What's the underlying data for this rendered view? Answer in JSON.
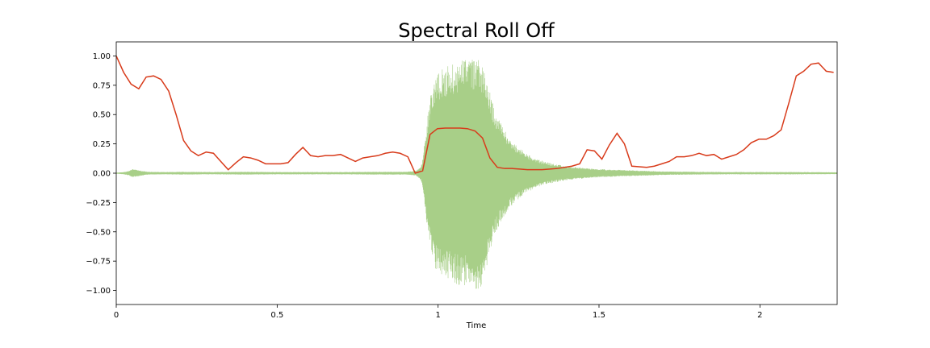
{
  "chart_data": {
    "type": "line",
    "title": "Spectral Roll Off",
    "xlabel": "Time",
    "ylabel": "",
    "xlim": [
      0,
      2.24
    ],
    "ylim": [
      -1.12,
      1.12
    ],
    "x_ticks": [
      {
        "value": 0,
        "label": "0"
      },
      {
        "value": 0.5,
        "label": "0.5"
      },
      {
        "value": 1,
        "label": "1"
      },
      {
        "value": 1.5,
        "label": "1.5"
      },
      {
        "value": 2,
        "label": "2"
      }
    ],
    "y_ticks": [
      {
        "value": 1.0,
        "label": "1.00"
      },
      {
        "value": 0.75,
        "label": "0.75"
      },
      {
        "value": 0.5,
        "label": "0.50"
      },
      {
        "value": 0.25,
        "label": "0.25"
      },
      {
        "value": 0.0,
        "label": "0.00"
      },
      {
        "value": -0.25,
        "label": "−0.25"
      },
      {
        "value": -0.5,
        "label": "−0.50"
      },
      {
        "value": -0.75,
        "label": "−0.75"
      },
      {
        "value": -1.0,
        "label": "−1.00"
      }
    ],
    "grid": false,
    "colors": {
      "waveform": "#7ab648",
      "rolloff": "#d83b1b"
    },
    "series": [
      {
        "kind": "waveform-envelope",
        "points": [
          [
            0.0,
            0.005
          ],
          [
            0.02,
            0.008
          ],
          [
            0.04,
            0.02
          ],
          [
            0.05,
            0.035
          ],
          [
            0.06,
            0.03
          ],
          [
            0.08,
            0.02
          ],
          [
            0.1,
            0.012
          ],
          [
            0.15,
            0.01
          ],
          [
            0.2,
            0.012
          ],
          [
            0.3,
            0.01
          ],
          [
            0.4,
            0.012
          ],
          [
            0.5,
            0.01
          ],
          [
            0.6,
            0.01
          ],
          [
            0.7,
            0.01
          ],
          [
            0.8,
            0.012
          ],
          [
            0.9,
            0.012
          ],
          [
            0.93,
            0.02
          ],
          [
            0.94,
            0.04
          ],
          [
            0.95,
            0.08
          ],
          [
            0.96,
            0.3
          ],
          [
            0.97,
            0.55
          ],
          [
            0.98,
            0.72
          ],
          [
            0.99,
            0.82
          ],
          [
            1.0,
            0.86
          ],
          [
            1.02,
            0.9
          ],
          [
            1.04,
            0.93
          ],
          [
            1.06,
            0.95
          ],
          [
            1.08,
            0.97
          ],
          [
            1.1,
            0.98
          ],
          [
            1.12,
            0.99
          ],
          [
            1.13,
            1.0
          ],
          [
            1.14,
            0.9
          ],
          [
            1.15,
            0.82
          ],
          [
            1.16,
            0.72
          ],
          [
            1.17,
            0.6
          ],
          [
            1.18,
            0.5
          ],
          [
            1.2,
            0.4
          ],
          [
            1.22,
            0.3
          ],
          [
            1.25,
            0.22
          ],
          [
            1.28,
            0.16
          ],
          [
            1.3,
            0.13
          ],
          [
            1.33,
            0.1
          ],
          [
            1.36,
            0.08
          ],
          [
            1.4,
            0.06
          ],
          [
            1.45,
            0.045
          ],
          [
            1.5,
            0.035
          ],
          [
            1.55,
            0.03
          ],
          [
            1.6,
            0.025
          ],
          [
            1.7,
            0.015
          ],
          [
            1.8,
            0.012
          ],
          [
            1.9,
            0.01
          ],
          [
            2.0,
            0.01
          ],
          [
            2.1,
            0.01
          ],
          [
            2.24,
            0.008
          ]
        ]
      },
      {
        "kind": "rolloff-line",
        "points": [
          [
            0.0,
            1.0
          ],
          [
            0.023,
            0.86
          ],
          [
            0.046,
            0.76
          ],
          [
            0.07,
            0.72
          ],
          [
            0.093,
            0.82
          ],
          [
            0.116,
            0.83
          ],
          [
            0.139,
            0.8
          ],
          [
            0.163,
            0.7
          ],
          [
            0.186,
            0.5
          ],
          [
            0.209,
            0.28
          ],
          [
            0.232,
            0.19
          ],
          [
            0.255,
            0.15
          ],
          [
            0.279,
            0.18
          ],
          [
            0.302,
            0.17
          ],
          [
            0.325,
            0.1
          ],
          [
            0.348,
            0.03
          ],
          [
            0.372,
            0.09
          ],
          [
            0.395,
            0.14
          ],
          [
            0.418,
            0.13
          ],
          [
            0.441,
            0.11
          ],
          [
            0.464,
            0.08
          ],
          [
            0.488,
            0.08
          ],
          [
            0.511,
            0.08
          ],
          [
            0.534,
            0.09
          ],
          [
            0.557,
            0.16
          ],
          [
            0.58,
            0.22
          ],
          [
            0.604,
            0.15
          ],
          [
            0.627,
            0.14
          ],
          [
            0.65,
            0.15
          ],
          [
            0.673,
            0.15
          ],
          [
            0.697,
            0.16
          ],
          [
            0.72,
            0.13
          ],
          [
            0.743,
            0.1
          ],
          [
            0.766,
            0.13
          ],
          [
            0.789,
            0.14
          ],
          [
            0.813,
            0.15
          ],
          [
            0.836,
            0.17
          ],
          [
            0.859,
            0.18
          ],
          [
            0.882,
            0.17
          ],
          [
            0.906,
            0.14
          ],
          [
            0.929,
            0.0
          ],
          [
            0.952,
            0.02
          ],
          [
            0.975,
            0.33
          ],
          [
            0.998,
            0.38
          ],
          [
            1.022,
            0.385
          ],
          [
            1.045,
            0.385
          ],
          [
            1.068,
            0.385
          ],
          [
            1.091,
            0.38
          ],
          [
            1.115,
            0.36
          ],
          [
            1.138,
            0.3
          ],
          [
            1.161,
            0.13
          ],
          [
            1.184,
            0.05
          ],
          [
            1.207,
            0.04
          ],
          [
            1.231,
            0.04
          ],
          [
            1.254,
            0.035
          ],
          [
            1.277,
            0.03
          ],
          [
            1.3,
            0.03
          ],
          [
            1.323,
            0.03
          ],
          [
            1.347,
            0.035
          ],
          [
            1.37,
            0.04
          ],
          [
            1.393,
            0.05
          ],
          [
            1.416,
            0.06
          ],
          [
            1.44,
            0.08
          ],
          [
            1.463,
            0.2
          ],
          [
            1.486,
            0.19
          ],
          [
            1.509,
            0.12
          ],
          [
            1.532,
            0.24
          ],
          [
            1.556,
            0.34
          ],
          [
            1.579,
            0.25
          ],
          [
            1.602,
            0.06
          ],
          [
            1.625,
            0.055
          ],
          [
            1.648,
            0.05
          ],
          [
            1.672,
            0.06
          ],
          [
            1.695,
            0.08
          ],
          [
            1.718,
            0.1
          ],
          [
            1.741,
            0.14
          ],
          [
            1.765,
            0.14
          ],
          [
            1.788,
            0.15
          ],
          [
            1.811,
            0.17
          ],
          [
            1.834,
            0.15
          ],
          [
            1.857,
            0.16
          ],
          [
            1.881,
            0.12
          ],
          [
            1.904,
            0.14
          ],
          [
            1.927,
            0.16
          ],
          [
            1.95,
            0.2
          ],
          [
            1.973,
            0.26
          ],
          [
            1.997,
            0.29
          ],
          [
            2.02,
            0.29
          ],
          [
            2.043,
            0.32
          ],
          [
            2.066,
            0.37
          ],
          [
            2.09,
            0.6
          ],
          [
            2.113,
            0.83
          ],
          [
            2.136,
            0.87
          ],
          [
            2.159,
            0.93
          ],
          [
            2.182,
            0.94
          ],
          [
            2.206,
            0.87
          ],
          [
            2.229,
            0.86
          ]
        ]
      }
    ]
  }
}
